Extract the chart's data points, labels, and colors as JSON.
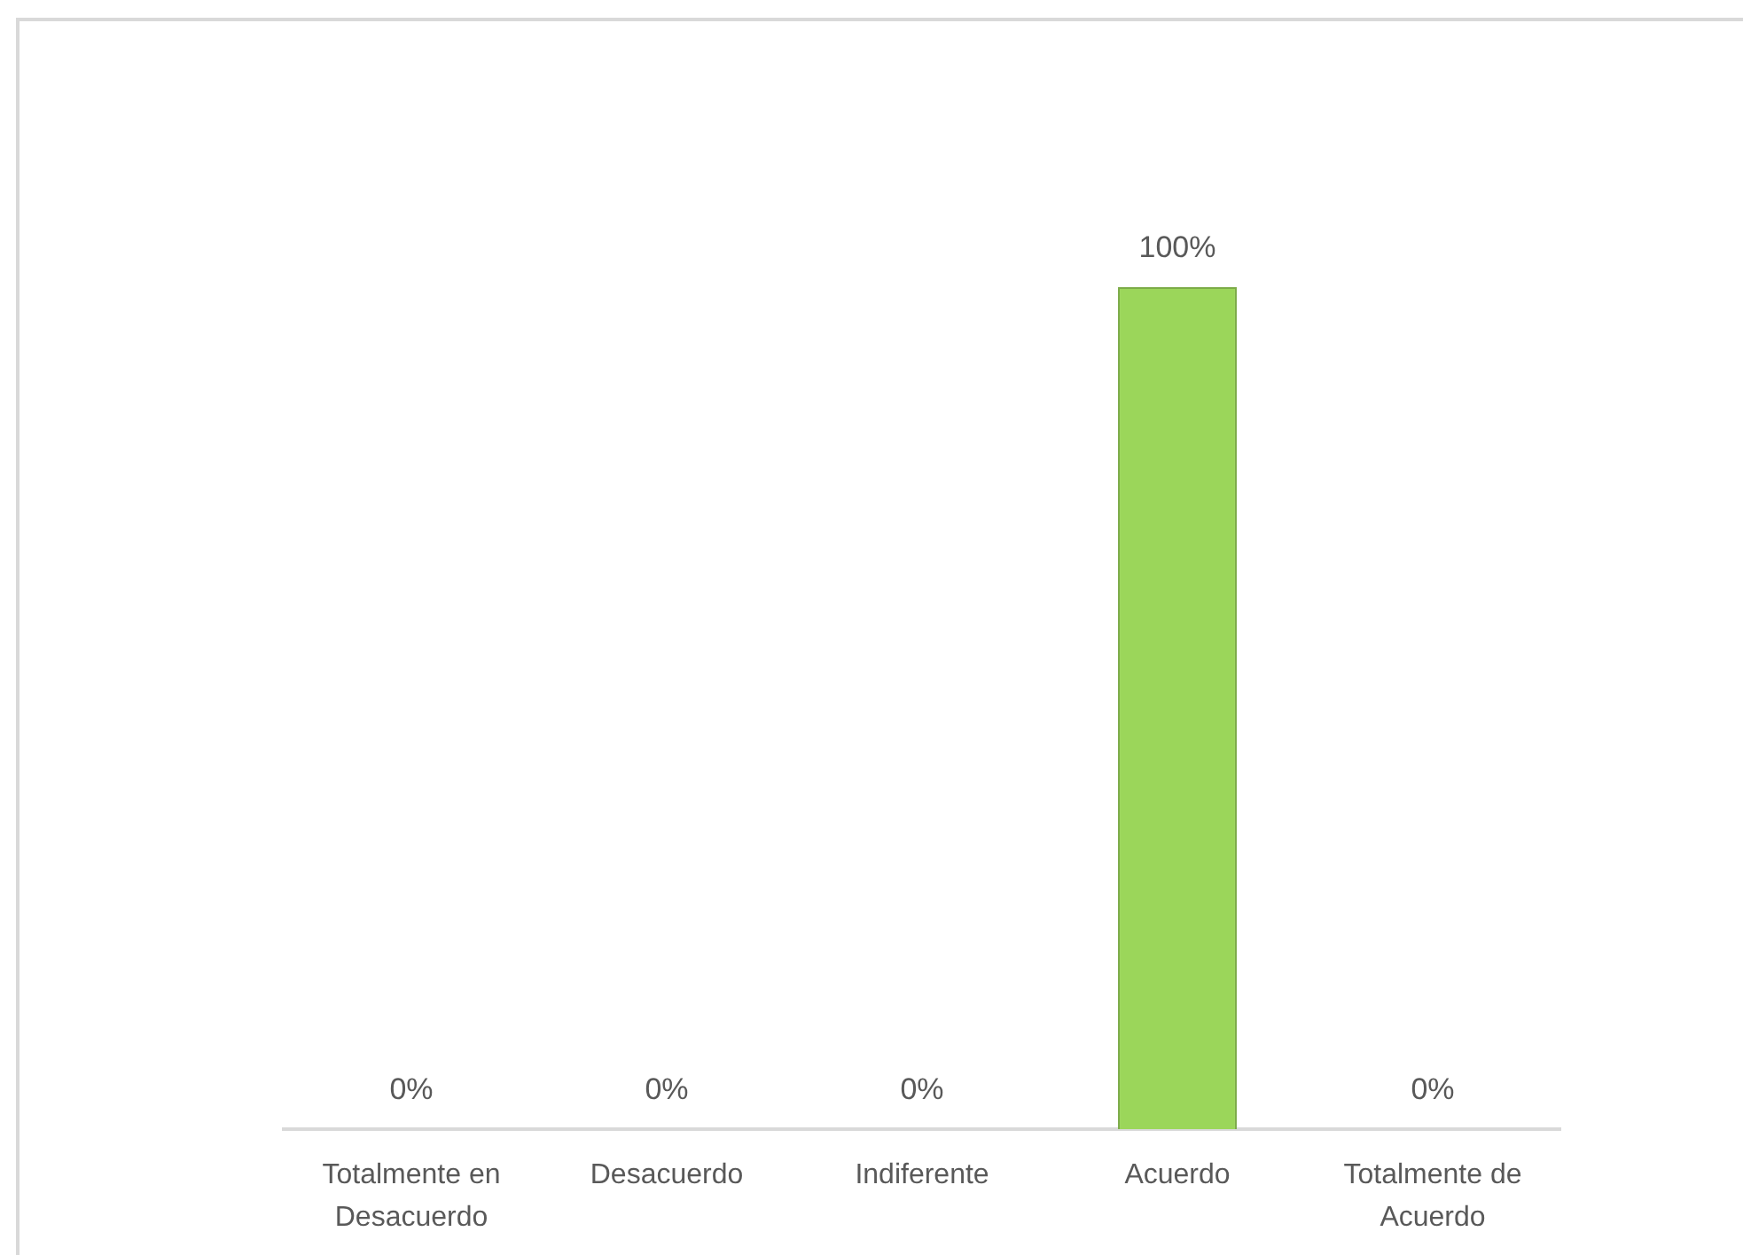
{
  "chart_data": {
    "type": "bar",
    "categories": [
      "Totalmente en Desacuerdo",
      "Desacuerdo",
      "Indiferente",
      "Acuerdo",
      "Totalmente de Acuerdo"
    ],
    "values": [
      0,
      0,
      0,
      100,
      0
    ],
    "color": "#9bd65a",
    "value_labels": [
      "0%",
      "0%",
      "0%",
      "100%",
      "0%"
    ]
  }
}
